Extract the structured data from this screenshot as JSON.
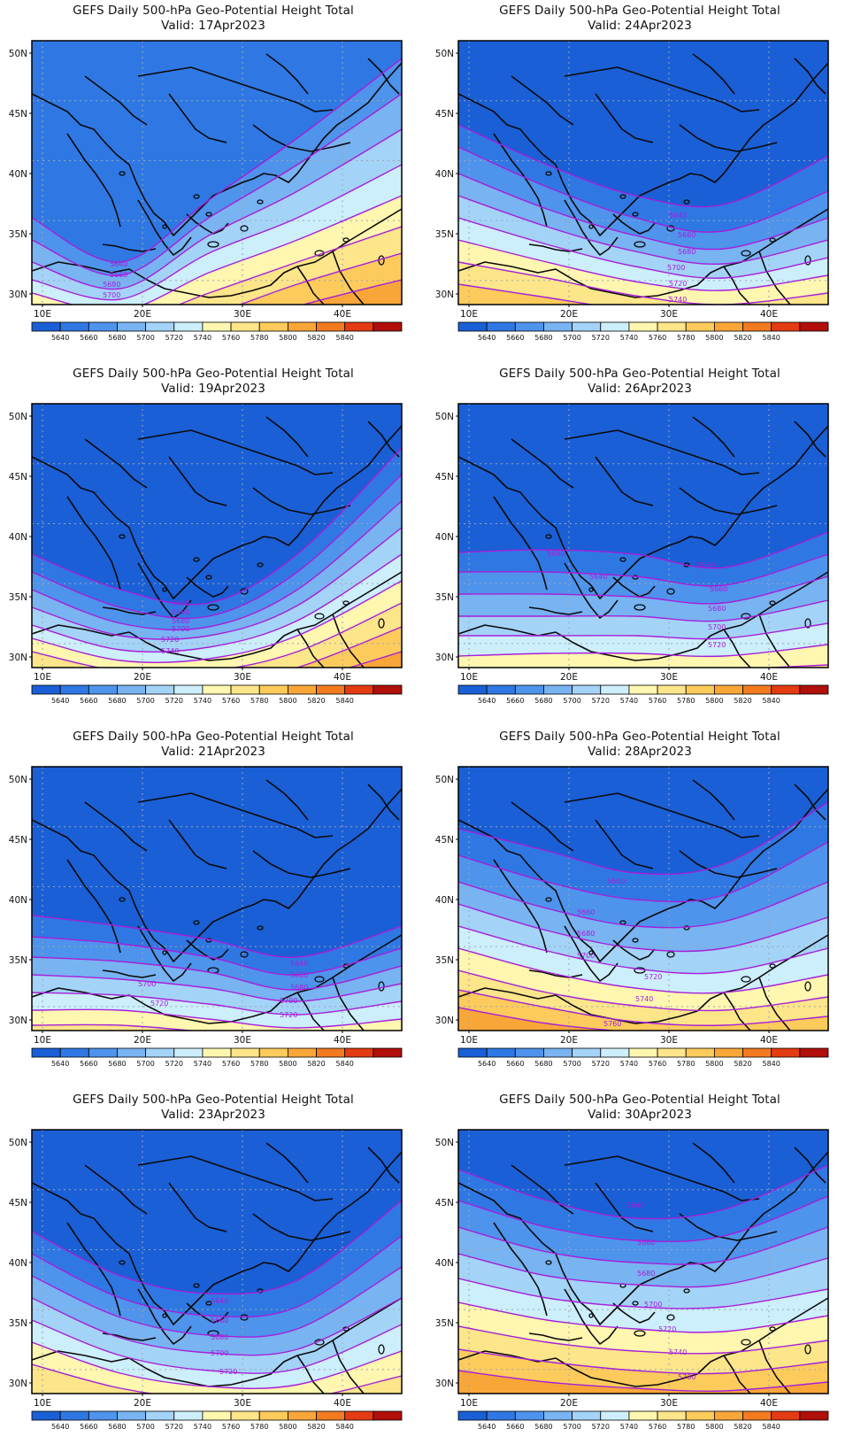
{
  "figure": {
    "title_prefix": "GEFS Daily 500-hPa Geo-Potential Height Total",
    "valid_prefix": "Valid:"
  },
  "axes": {
    "lat_labels": [
      "50N",
      "45N",
      "40N",
      "35N",
      "30N"
    ],
    "lon_labels": [
      "10E",
      "20E",
      "30E",
      "40E"
    ]
  },
  "colorbar": {
    "labels": [
      "5640",
      "5660",
      "5680",
      "5700",
      "5720",
      "5740",
      "5760",
      "5780",
      "5800",
      "5820",
      "5840"
    ],
    "colors": [
      "#1a5fd6",
      "#2f78e4",
      "#4e93ec",
      "#78b3f2",
      "#a4d3f8",
      "#cdeefb",
      "#fff6b0",
      "#fde58a",
      "#fccb5c",
      "#f9a638",
      "#f47a20",
      "#e33b12",
      "#b00f0a"
    ]
  },
  "contour_color": "#a61fd9",
  "panels": [
    {
      "title": "GEFS Daily 500-hPa Geo-Potential Height Total",
      "valid": "Valid: 17Apr2023",
      "contour_labels": [
        "5640",
        "5660",
        "5680",
        "5700"
      ]
    },
    {
      "title": "GEFS Daily 500-hPa Geo-Potential Height Total",
      "valid": "Valid: 24Apr2023",
      "contour_labels": [
        "5640",
        "5660",
        "5680",
        "5700",
        "5720",
        "5740"
      ]
    },
    {
      "title": "GEFS Daily 500-hPa Geo-Potential Height Total",
      "valid": "Valid: 19Apr2023",
      "contour_labels": [
        "5640",
        "5660",
        "5680",
        "5700",
        "5720",
        "5740"
      ]
    },
    {
      "title": "GEFS Daily 500-hPa Geo-Potential Height Total",
      "valid": "Valid: 26Apr2023",
      "contour_labels": [
        "5640",
        "5640",
        "5660",
        "5660",
        "5680",
        "5700",
        "5720"
      ]
    },
    {
      "title": "GEFS Daily 500-hPa Geo-Potential Height Total",
      "valid": "Valid: 21Apr2023",
      "contour_labels": [
        "5640",
        "5660",
        "5680",
        "5700",
        "5700",
        "5720",
        "5720"
      ]
    },
    {
      "title": "GEFS Daily 500-hPa Geo-Potential Height Total",
      "valid": "Valid: 28Apr2023",
      "contour_labels": [
        "5640",
        "5660",
        "5680",
        "5700",
        "5720",
        "5740",
        "5760"
      ]
    },
    {
      "title": "GEFS Daily 500-hPa Geo-Potential Height Total",
      "valid": "Valid: 23Apr2023",
      "contour_labels": [
        "5640",
        "5660",
        "5680",
        "5700",
        "5720"
      ]
    },
    {
      "title": "GEFS Daily 500-hPa Geo-Potential Height Total",
      "valid": "Valid: 30Apr2023",
      "contour_labels": [
        "5640",
        "5660",
        "5680",
        "5700",
        "5720",
        "5740",
        "5760"
      ]
    }
  ]
}
